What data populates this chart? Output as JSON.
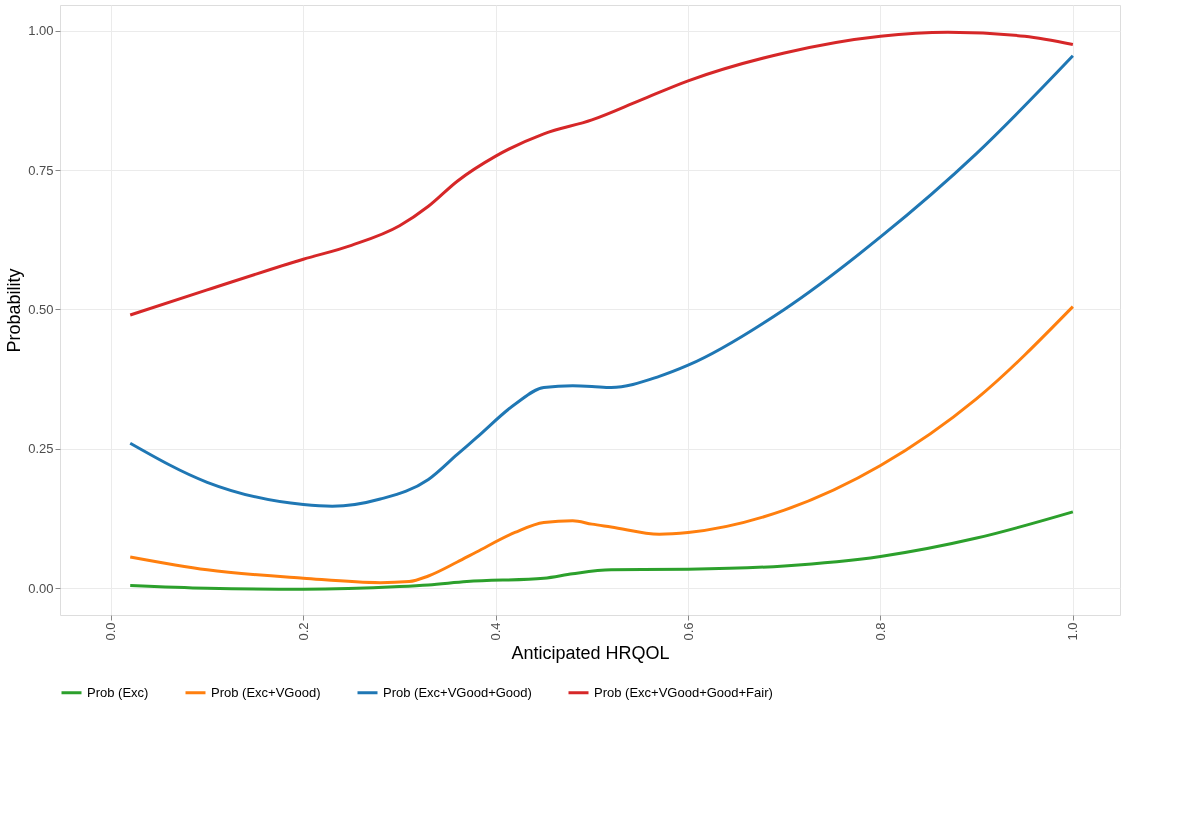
{
  "chart_data": {
    "type": "line",
    "xlabel": "Anticipated HRQOL",
    "ylabel": "Probability",
    "xlim": [
      -0.053,
      1.049
    ],
    "ylim": [
      -0.048,
      1.046
    ],
    "xticks": [
      {
        "value": 0,
        "label": "0.0"
      },
      {
        "value": 0.2,
        "label": "0.2"
      },
      {
        "value": 0.4,
        "label": "0.4"
      },
      {
        "value": 0.6,
        "label": "0.6"
      },
      {
        "value": 0.8,
        "label": "0.8"
      },
      {
        "value": 1,
        "label": "1.0"
      }
    ],
    "yticks": [
      {
        "value": 0,
        "label": "0.00"
      },
      {
        "value": 0.25,
        "label": "0.25"
      },
      {
        "value": 0.5,
        "label": "0.50"
      },
      {
        "value": 0.75,
        "label": "0.75"
      },
      {
        "value": 1,
        "label": "1.00"
      }
    ],
    "grid": true,
    "legend": "bottom",
    "line_style": "solid",
    "marker": "none",
    "series": [
      {
        "name": "Prob (Exc)",
        "color": "#2ca02c",
        "x": [
          0.02,
          0.1,
          0.2,
          0.3,
          0.33,
          0.37,
          0.45,
          0.48,
          0.52,
          0.6,
          0.7,
          0.8,
          0.9,
          1.0
        ],
        "values": [
          0.005,
          0.0,
          -0.002,
          0.003,
          0.006,
          0.012,
          0.018,
          0.026,
          0.033,
          0.034,
          0.04,
          0.057,
          0.09,
          0.137
        ]
      },
      {
        "name": "Prob (Exc+VGood)",
        "color": "#ff7f0e",
        "x": [
          0.02,
          0.1,
          0.2,
          0.28,
          0.31,
          0.33,
          0.36,
          0.38,
          0.42,
          0.45,
          0.48,
          0.5,
          0.52,
          0.57,
          0.6,
          0.7,
          0.8,
          0.9,
          1.0
        ],
        "values": [
          0.056,
          0.033,
          0.018,
          0.01,
          0.012,
          0.022,
          0.047,
          0.065,
          0.1,
          0.118,
          0.121,
          0.115,
          0.11,
          0.097,
          0.1,
          0.14,
          0.22,
          0.34,
          0.505
        ]
      },
      {
        "name": "Prob (Exc+VGood+Good)",
        "color": "#1f77b4",
        "x": [
          0.02,
          0.1,
          0.2,
          0.23,
          0.28,
          0.33,
          0.36,
          0.38,
          0.42,
          0.45,
          0.48,
          0.5,
          0.52,
          0.57,
          0.6,
          0.7,
          0.8,
          0.9,
          1.0
        ],
        "values": [
          0.26,
          0.19,
          0.15,
          0.147,
          0.16,
          0.195,
          0.24,
          0.27,
          0.33,
          0.36,
          0.363,
          0.362,
          0.36,
          0.38,
          0.4,
          0.5,
          0.63,
          0.78,
          0.955
        ]
      },
      {
        "name": "Prob (Exc+VGood+Good+Fair)",
        "color": "#d62728",
        "x": [
          0.02,
          0.1,
          0.2,
          0.25,
          0.3,
          0.33,
          0.36,
          0.4,
          0.45,
          0.5,
          0.55,
          0.6,
          0.7,
          0.8,
          0.87,
          0.95,
          1.0
        ],
        "values": [
          0.49,
          0.535,
          0.59,
          0.615,
          0.65,
          0.685,
          0.73,
          0.775,
          0.815,
          0.84,
          0.875,
          0.91,
          0.96,
          0.99,
          0.997,
          0.99,
          0.975
        ]
      }
    ]
  }
}
